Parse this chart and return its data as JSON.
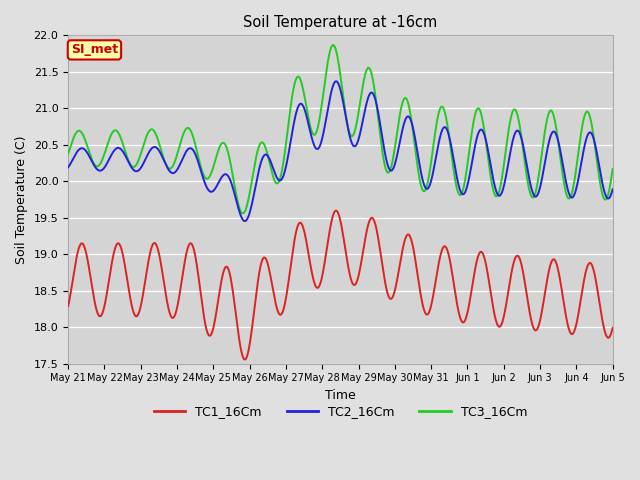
{
  "title": "Soil Temperature at -16cm",
  "xlabel": "Time",
  "ylabel": "Soil Temperature (C)",
  "ylim": [
    17.5,
    22.0
  ],
  "background_color": "#e0e0e0",
  "plot_bg_color": "#d4d4d4",
  "grid_color": "#ffffff",
  "label_box_text": "SI_met",
  "label_box_bg": "#ffffaa",
  "label_box_border": "#cc0000",
  "label_box_text_color": "#cc0000",
  "tc1_color": "#dd2222",
  "tc2_color": "#2222dd",
  "tc3_color": "#22cc22",
  "tc1_label": "TC1_16Cm",
  "tc2_label": "TC2_16Cm",
  "tc3_label": "TC3_16Cm",
  "xtick_labels": [
    "May 21",
    "May 22",
    "May 23",
    "May 24",
    "May 25",
    "May 26",
    "May 27",
    "May 28",
    "May 29",
    "May 30",
    "May 31",
    "Jun 1",
    "Jun 2",
    "Jun 3",
    "Jun 4",
    "Jun 5"
  ],
  "n_days": 15
}
